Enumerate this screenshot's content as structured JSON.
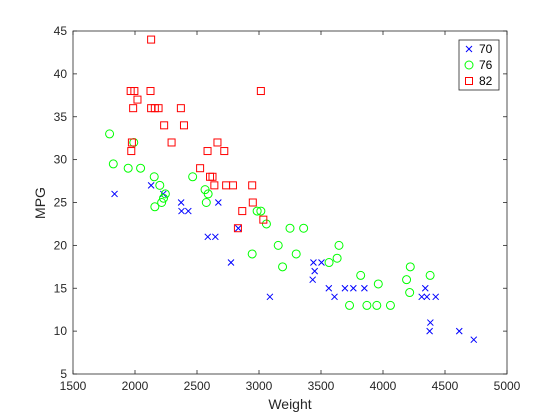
{
  "chart_data": {
    "type": "scatter",
    "title": "",
    "xlabel": "Weight",
    "ylabel": "MPG",
    "xlim": [
      1500,
      5000
    ],
    "ylim": [
      5,
      45
    ],
    "xticks": [
      "1500",
      "2000",
      "2500",
      "3000",
      "3500",
      "4000",
      "4500",
      "5000"
    ],
    "yticks": [
      "5",
      "10",
      "15",
      "20",
      "25",
      "30",
      "35",
      "40",
      "45"
    ],
    "grid": false,
    "legend_position": "top-right",
    "series": [
      {
        "name": "70",
        "marker": "x",
        "color": "#0000ff",
        "points": [
          [
            1835,
            26
          ],
          [
            2130,
            27
          ],
          [
            2228,
            26
          ],
          [
            2372,
            25
          ],
          [
            2375,
            24
          ],
          [
            2430,
            24
          ],
          [
            2587,
            21
          ],
          [
            2648,
            21
          ],
          [
            2672,
            25
          ],
          [
            2774,
            18
          ],
          [
            2833,
            22
          ],
          [
            3088,
            14
          ],
          [
            3433,
            16
          ],
          [
            3439,
            18
          ],
          [
            3449,
            17
          ],
          [
            3504,
            18
          ],
          [
            3563,
            15
          ],
          [
            3609,
            14
          ],
          [
            3693,
            15
          ],
          [
            3761,
            15
          ],
          [
            3850,
            15
          ],
          [
            4312,
            14
          ],
          [
            4341,
            15
          ],
          [
            4354,
            14
          ],
          [
            4376,
            10
          ],
          [
            4382,
            11
          ],
          [
            4425,
            14
          ],
          [
            4615,
            10
          ],
          [
            4732,
            9
          ]
        ]
      },
      {
        "name": "76",
        "marker": "o",
        "color": "#00ff00",
        "points": [
          [
            1795,
            33
          ],
          [
            1825,
            29.5
          ],
          [
            1945,
            29
          ],
          [
            1990,
            32
          ],
          [
            2045,
            29
          ],
          [
            2155,
            28
          ],
          [
            2160,
            24.5
          ],
          [
            2200,
            27
          ],
          [
            2215,
            25
          ],
          [
            2230,
            25.5
          ],
          [
            2245,
            26
          ],
          [
            2465,
            28
          ],
          [
            2565,
            26.5
          ],
          [
            2575,
            25
          ],
          [
            2590,
            26
          ],
          [
            2945,
            19
          ],
          [
            2985,
            24
          ],
          [
            3015,
            24
          ],
          [
            3060,
            22.5
          ],
          [
            3155,
            20
          ],
          [
            3190,
            17.5
          ],
          [
            3250,
            22
          ],
          [
            3300,
            19
          ],
          [
            3360,
            22
          ],
          [
            3565,
            18
          ],
          [
            3630,
            18.5
          ],
          [
            3645,
            20
          ],
          [
            3820,
            16.5
          ],
          [
            3870,
            13
          ],
          [
            3730,
            13
          ],
          [
            3950,
            13
          ],
          [
            3962,
            15.5
          ],
          [
            4060,
            13
          ],
          [
            4190,
            16
          ],
          [
            4215,
            14.5
          ],
          [
            4220,
            17.5
          ],
          [
            4380,
            16.5
          ]
        ]
      },
      {
        "name": "82",
        "marker": "square",
        "color": "#ff0000",
        "points": [
          [
            1965,
            38
          ],
          [
            1970,
            31
          ],
          [
            1975,
            32
          ],
          [
            1985,
            36
          ],
          [
            1995,
            38
          ],
          [
            2020,
            37
          ],
          [
            2125,
            38
          ],
          [
            2130,
            44
          ],
          [
            2130,
            36
          ],
          [
            2160,
            36
          ],
          [
            2190,
            36
          ],
          [
            2235,
            34
          ],
          [
            2295,
            32
          ],
          [
            2370,
            36
          ],
          [
            2395,
            34
          ],
          [
            2525,
            29
          ],
          [
            2585,
            31
          ],
          [
            2605,
            28
          ],
          [
            2625,
            28
          ],
          [
            2640,
            27
          ],
          [
            2665,
            32
          ],
          [
            2720,
            31
          ],
          [
            2735,
            27
          ],
          [
            2790,
            27
          ],
          [
            2830,
            22
          ],
          [
            2865,
            24
          ],
          [
            2945,
            27
          ],
          [
            2950,
            25
          ],
          [
            3015,
            38
          ],
          [
            3035,
            23
          ]
        ]
      }
    ]
  }
}
